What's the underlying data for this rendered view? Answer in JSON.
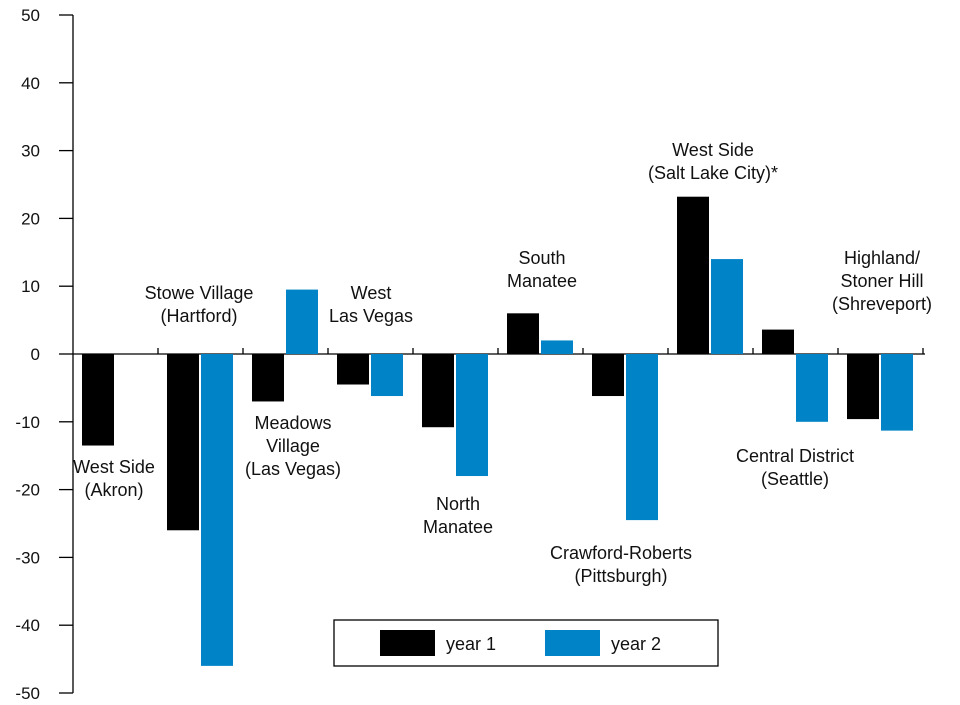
{
  "chart_data": {
    "type": "bar",
    "title": "",
    "xlabel": "",
    "ylabel": "",
    "ylim": [
      -50,
      50
    ],
    "yticks": [
      50,
      40,
      30,
      20,
      10,
      0,
      -10,
      -20,
      -30,
      -40,
      -50
    ],
    "grid": false,
    "legend_position": "bottom-center",
    "categories": [
      "West Side (Akron)",
      "Stowe Village (Hartford)",
      "Meadows Village (Las Vegas)",
      "West Las Vegas",
      "North Manatee",
      "South Manatee",
      "Crawford-Roberts (Pittsburgh)",
      "West Side (Salt Lake City)*",
      "Central District (Seattle)",
      "Highland/ Stoner Hill (Shreveport)"
    ],
    "category_label_lines": [
      [
        "West Side",
        "(Akron)"
      ],
      [
        "Stowe Village",
        "(Hartford)"
      ],
      [
        "Meadows",
        "Village",
        "(Las Vegas)"
      ],
      [
        "West",
        "Las Vegas"
      ],
      [
        "North",
        "Manatee"
      ],
      [
        "South",
        "Manatee"
      ],
      [
        "Crawford-Roberts",
        "(Pittsburgh)"
      ],
      [
        "West Side",
        "(Salt Lake City)*"
      ],
      [
        "Central District",
        "(Seattle)"
      ],
      [
        "Highland/",
        "Stoner Hill",
        "(Shreveport)"
      ]
    ],
    "series": [
      {
        "name": "year 1",
        "color": "#000000",
        "values": [
          -13.5,
          -26,
          -7,
          -4.5,
          -10.8,
          6,
          -6.2,
          23.2,
          3.6,
          -9.6
        ]
      },
      {
        "name": "year 2",
        "color": "#0083c7",
        "values": [
          null,
          -46,
          9.5,
          -6.2,
          -18,
          2,
          -24.5,
          14,
          -10,
          -11.3
        ]
      }
    ]
  }
}
